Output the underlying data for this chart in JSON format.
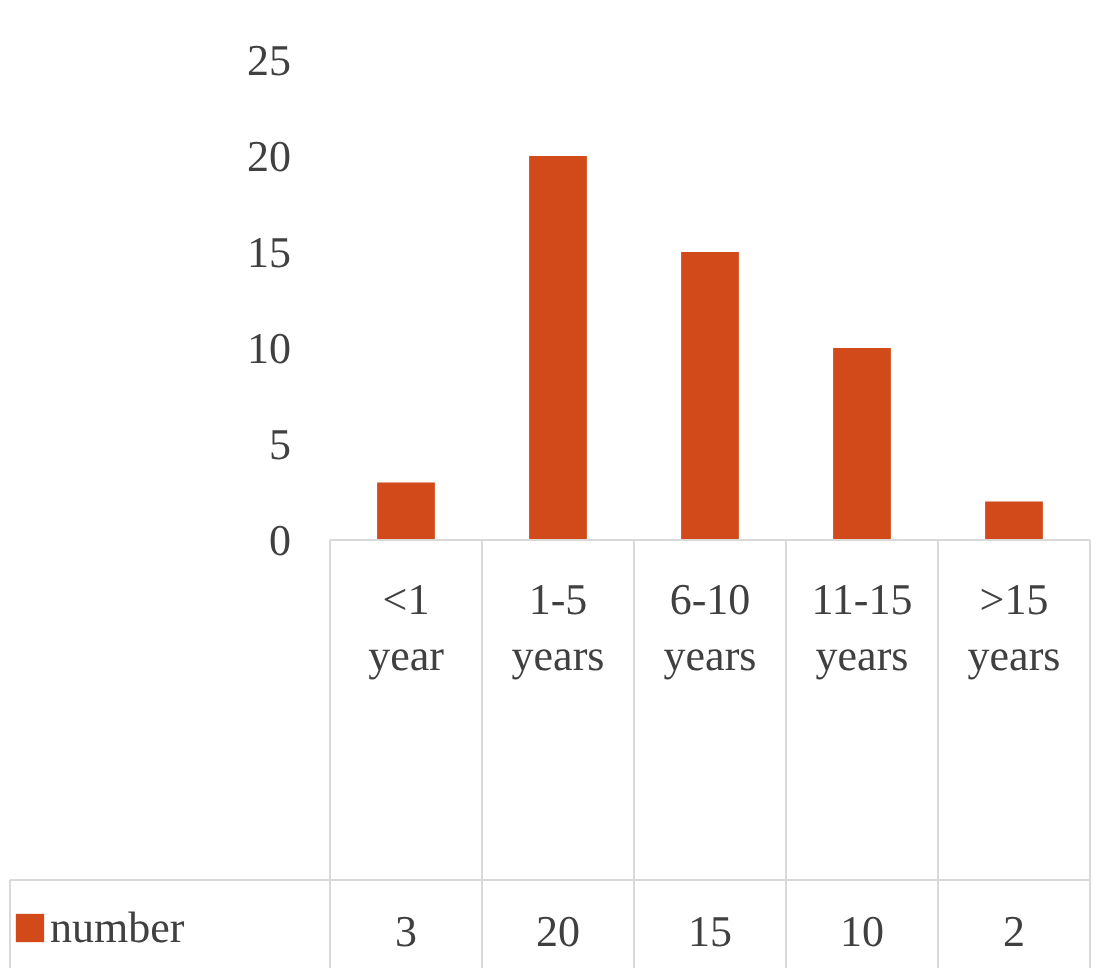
{
  "chart_data": {
    "type": "bar",
    "categories": [
      "<1 year",
      "1-5 years",
      "6-10 years",
      "11-15 years",
      ">15 years"
    ],
    "series": [
      {
        "name": "number",
        "color": "#d24a1a",
        "values": [
          3,
          20,
          15,
          10,
          2
        ]
      }
    ],
    "ylim": [
      0,
      25
    ],
    "yticks": [
      0,
      5,
      10,
      15,
      20,
      25
    ],
    "grid": false,
    "data_labels": true,
    "legend": "bottom"
  }
}
